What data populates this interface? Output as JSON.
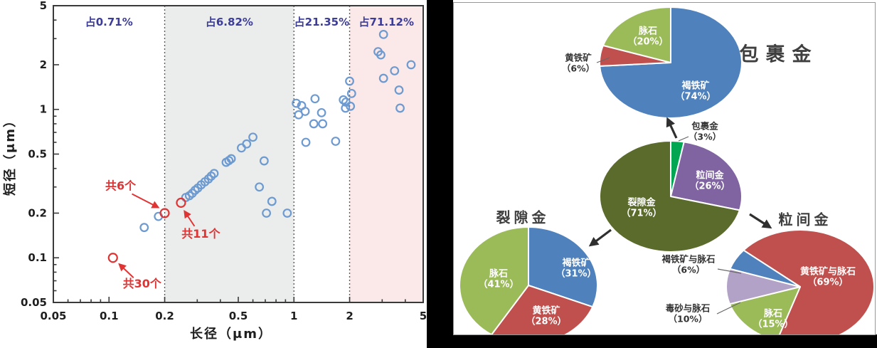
{
  "chart_data": [
    {
      "type": "scatter",
      "xlabel": "长径（μm）",
      "ylabel": "短径（μm）",
      "xscale": "log",
      "yscale": "log",
      "xlim": [
        0.05,
        5
      ],
      "ylim": [
        0.05,
        5
      ],
      "x_ticks": [
        "0.05",
        "0.1",
        "0.2",
        "0.5",
        "1",
        "2",
        "5"
      ],
      "y_ticks": [
        "5",
        "2",
        "1",
        "0.5",
        "0.2",
        "0.1",
        "0.05"
      ],
      "grid": false,
      "regions": [
        {
          "label": "占0.71%",
          "from": 0.05,
          "to": 0.2,
          "fill": "#ffffff"
        },
        {
          "label": "占6.82%",
          "from": 0.2,
          "to": 1,
          "fill": "#ebedec"
        },
        {
          "label": "占21.35%",
          "from": 1,
          "to": 2,
          "fill": "#ffffff"
        },
        {
          "label": "占71.12%",
          "from": 2,
          "to": 5,
          "fill": "#fbe9e9"
        }
      ],
      "divider_x": [
        0.2,
        1,
        2
      ],
      "region_label_color": "#3c3c99",
      "series": [
        {
          "name": "gold-grains",
          "marker": "open-circle",
          "color": "#6d9ad0",
          "points": [
            [
              0.155,
              0.16
            ],
            [
              0.185,
              0.19
            ],
            [
              0.26,
              0.255
            ],
            [
              0.272,
              0.262
            ],
            [
              0.282,
              0.272
            ],
            [
              0.292,
              0.285
            ],
            [
              0.302,
              0.295
            ],
            [
              0.315,
              0.31
            ],
            [
              0.33,
              0.325
            ],
            [
              0.345,
              0.34
            ],
            [
              0.357,
              0.355
            ],
            [
              0.37,
              0.37
            ],
            [
              0.43,
              0.44
            ],
            [
              0.445,
              0.452
            ],
            [
              0.458,
              0.465
            ],
            [
              0.52,
              0.55
            ],
            [
              0.555,
              0.585
            ],
            [
              0.6,
              0.65
            ],
            [
              0.69,
              0.45
            ],
            [
              0.65,
              0.3
            ],
            [
              0.76,
              0.24
            ],
            [
              0.71,
              0.2
            ],
            [
              0.92,
              0.2
            ],
            [
              1.03,
              1.1
            ],
            [
              1.1,
              1.06
            ],
            [
              1.06,
              0.92
            ],
            [
              1.15,
              0.97
            ],
            [
              1.3,
              1.18
            ],
            [
              1.41,
              0.95
            ],
            [
              1.28,
              0.8
            ],
            [
              1.43,
              0.8
            ],
            [
              1.16,
              0.6
            ],
            [
              1.68,
              0.61
            ],
            [
              1.85,
              1.16
            ],
            [
              1.91,
              1.12
            ],
            [
              1.9,
              1.02
            ],
            [
              2.0,
              1.55
            ],
            [
              2.05,
              1.28
            ],
            [
              2.02,
              1.05
            ],
            [
              3.05,
              3.2
            ],
            [
              2.85,
              2.45
            ],
            [
              2.95,
              2.33
            ],
            [
              4.3,
              2.0
            ],
            [
              3.5,
              1.82
            ],
            [
              3.05,
              1.62
            ],
            [
              3.7,
              1.35
            ],
            [
              3.75,
              1.02
            ]
          ]
        }
      ],
      "highlight_points": [
        {
          "x": 0.105,
          "y": 0.1,
          "label": "共30个",
          "color": "#e03434"
        },
        {
          "x": 0.2,
          "y": 0.2,
          "label": "共6个",
          "color": "#e03434"
        },
        {
          "x": 0.245,
          "y": 0.235,
          "label": "共11个",
          "color": "#e03434"
        }
      ]
    },
    {
      "type": "pie",
      "id": "wrapped-gold-detail",
      "title": "包裹金",
      "start_angle": 0,
      "slices": [
        {
          "label": "褐铁矿",
          "pct": 74,
          "pct_text": "（74%）",
          "color": "#4f81bd"
        },
        {
          "label": "黄铁矿",
          "pct": 6,
          "pct_text": "（6%）",
          "color": "#c0504d"
        },
        {
          "label": "脉石",
          "pct": 20,
          "pct_text": "（20%）",
          "color": "#9bbb59"
        }
      ]
    },
    {
      "type": "pie",
      "id": "total-occurrence",
      "title": "",
      "start_angle": 0,
      "slices": [
        {
          "label": "包裹金",
          "pct": 3,
          "pct_text": "（3%）",
          "color": "#00a651"
        },
        {
          "label": "粒间金",
          "pct": 26,
          "pct_text": "（26%）",
          "color": "#8064a2"
        },
        {
          "label": "裂隙金",
          "pct": 71,
          "pct_text": "（71%）",
          "color": "#5a6b2c"
        }
      ]
    },
    {
      "type": "pie",
      "id": "fissure-gold-detail",
      "title": "裂隙金",
      "start_angle": 0,
      "slices": [
        {
          "label": "褐铁矿",
          "pct": 31,
          "pct_text": "（31%）",
          "color": "#4f81bd"
        },
        {
          "label": "黄铁矿",
          "pct": 28,
          "pct_text": "（28%）",
          "color": "#c0504d"
        },
        {
          "label": "脉石",
          "pct": 41,
          "pct_text": "（41%）",
          "color": "#9bbb59"
        }
      ]
    },
    {
      "type": "pie",
      "id": "intergranular-gold-detail",
      "title": "粒间金",
      "start_angle": -50,
      "slices": [
        {
          "label": "黄铁矿与脉石",
          "pct": 69,
          "pct_text": "（69%）",
          "color": "#c0504d"
        },
        {
          "label": "脉石",
          "pct": 15,
          "pct_text": "（15%）",
          "color": "#9bbb59"
        },
        {
          "label": "毒砂与脉石",
          "pct": 10,
          "pct_text": "（10%）",
          "color": "#b3a2c7"
        },
        {
          "label": "褐铁矿与脉石",
          "pct": 6,
          "pct_text": "（6%）",
          "color": "#4f81bd"
        }
      ]
    }
  ]
}
